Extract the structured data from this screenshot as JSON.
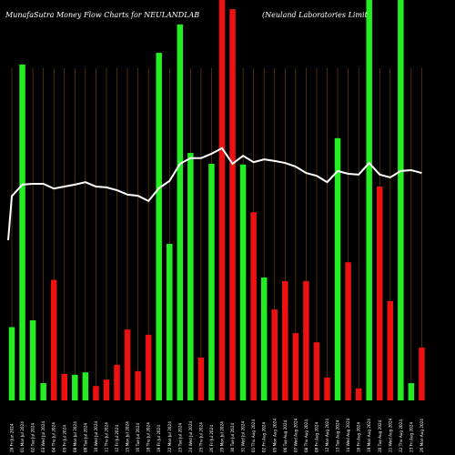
{
  "title_left": "MunafaSutra  Money Flow  Charts for NEULANDLAB",
  "title_right": "(Neuland Laboratories Limit",
  "colors": {
    "up": "#22ee22",
    "down": "#ee1111",
    "grid": "#7a4a10",
    "line": "#ffffff",
    "background": "#000000"
  },
  "chart_data": {
    "type": "bar",
    "y_range": [
      0,
      100
    ],
    "categories": [
      "28 Fri Jun 2024",
      "01 Mon Jul 2024",
      "02 Tue Jul 2024",
      "03 Wed Jul 2024",
      "04 Thu Jul 2024",
      "05 Fri Jul 2024",
      "08 Mon Jul 2024",
      "09 Tue Jul 2024",
      "10 Wed Jul 2024",
      "11 Thu Jul 2024",
      "12 Fri Jul 2024",
      "15 Mon Jul 2024",
      "16 Tue Jul 2024",
      "18 Thu Jul 2024",
      "19 Fri Jul 2024",
      "22 Mon Jul 2024",
      "23 Tue Jul 2024",
      "24 Wed Jul 2024",
      "25 Thu Jul 2024",
      "26 Fri Jul 2024",
      "29 Mon Jul 2024",
      "30 Tue Jul 2024",
      "31 Wed Jul 2024",
      "01 Thu Aug 2024",
      "02 Fri Aug 2024",
      "05 Mon Aug 2024",
      "06 Tue Aug 2024",
      "07 Wed Aug 2024",
      "08 Thu Aug 2024",
      "09 Fri Aug 2024",
      "12 Mon Aug 2024",
      "13 Tue Aug 2024",
      "14 Wed Aug 2024",
      "16 Fri Aug 2024",
      "19 Mon Aug 2024",
      "20 Tue Aug 2024",
      "21 Wed Aug 2024",
      "22 Thu Aug 2024",
      "23 Fri Aug 2024",
      "26 Mon Aug 2024"
    ],
    "x_tick_labels": [
      "28 Fri Jun 2024",
      "01 Mon Jul 2024",
      "02 Tue Jul 2024",
      "03 Wed Jul 2024",
      "04 Thu Jul 2024",
      "05 Fri Jul 2024",
      "08 Mon Jul 2024",
      "09 Tue Jul 2024",
      "10 Wed Jul 2024",
      "11 Thu Jul 2024",
      "12 Fri Jul 2024",
      "15 Mon Jul 2024",
      "16 Tue Jul 2024",
      "18 Thu Jul 2024",
      "19 Fri Jul 2024",
      "22 Mon Jul 2024",
      "23 Tue Jul 2024",
      "24 Wed Jul 2024",
      "25 Thu Jul 2024",
      "26 Fri Jul 2024",
      "29 Mon Jul 2024",
      "30 Tue Jul 2024",
      "31 Wed Jul 2024",
      "01 Thu Aug 2024",
      "02 Fri Aug 2024",
      "05 Mon Aug 2024",
      "06 Tue Aug 2024",
      "07 Wed Aug 2024",
      "08 Thu Aug 2024",
      "09 Fri Aug 2024",
      "12 Mon Aug 2024",
      "13 Tue Aug 2024",
      "14 Wed Aug 2024",
      "16 Fri Aug 2024",
      "19 Mon Aug 2024",
      "20 Tue Aug 2024",
      "21 Wed Aug 2024",
      "22 Thu Aug 2024",
      "23 Fri Aug 2024",
      "26 Mon Aug 2024"
    ],
    "bars": [
      {
        "value": 18.3,
        "direction": "up"
      },
      {
        "value": 83.9,
        "direction": "up"
      },
      {
        "value": 20.0,
        "direction": "up"
      },
      {
        "value": 4.3,
        "direction": "up"
      },
      {
        "value": 30.1,
        "direction": "down"
      },
      {
        "value": 6.6,
        "direction": "down"
      },
      {
        "value": 6.4,
        "direction": "up"
      },
      {
        "value": 7.0,
        "direction": "up"
      },
      {
        "value": 3.6,
        "direction": "down"
      },
      {
        "value": 5.2,
        "direction": "down"
      },
      {
        "value": 8.9,
        "direction": "down"
      },
      {
        "value": 17.7,
        "direction": "down"
      },
      {
        "value": 7.3,
        "direction": "down"
      },
      {
        "value": 16.4,
        "direction": "down"
      },
      {
        "value": 86.8,
        "direction": "up"
      },
      {
        "value": 39.1,
        "direction": "up"
      },
      {
        "value": 93.9,
        "direction": "up"
      },
      {
        "value": 61.8,
        "direction": "up"
      },
      {
        "value": 10.7,
        "direction": "down"
      },
      {
        "value": 59.1,
        "direction": "up"
      },
      {
        "value": 100.0,
        "direction": "down"
      },
      {
        "value": 97.7,
        "direction": "down"
      },
      {
        "value": 58.9,
        "direction": "up"
      },
      {
        "value": 47.0,
        "direction": "down"
      },
      {
        "value": 30.7,
        "direction": "up"
      },
      {
        "value": 22.7,
        "direction": "down"
      },
      {
        "value": 29.8,
        "direction": "down"
      },
      {
        "value": 16.8,
        "direction": "down"
      },
      {
        "value": 29.8,
        "direction": "down"
      },
      {
        "value": 14.5,
        "direction": "down"
      },
      {
        "value": 5.7,
        "direction": "down"
      },
      {
        "value": 65.5,
        "direction": "up"
      },
      {
        "value": 34.5,
        "direction": "down"
      },
      {
        "value": 3.0,
        "direction": "down"
      },
      {
        "value": 100.0,
        "direction": "up"
      },
      {
        "value": 53.4,
        "direction": "down"
      },
      {
        "value": 24.8,
        "direction": "down"
      },
      {
        "value": 100.0,
        "direction": "up"
      },
      {
        "value": 4.3,
        "direction": "up"
      },
      {
        "value": 13.2,
        "direction": "down"
      }
    ],
    "line_series": [
      51,
      53.9,
      54.1,
      54.1,
      52.9,
      53.4,
      53.9,
      54.5,
      53.4,
      53.2,
      52.5,
      51.4,
      51.1,
      49.8,
      53.0,
      54.8,
      59.1,
      60.5,
      60.5,
      61.6,
      63.0,
      59.1,
      61.1,
      59.5,
      60.2,
      59.8,
      59.3,
      58.4,
      56.8,
      56.1,
      54.5,
      57.3,
      56.6,
      56.4,
      59.3,
      56.4,
      55.7,
      57.3,
      57.5,
      56.8
    ]
  }
}
